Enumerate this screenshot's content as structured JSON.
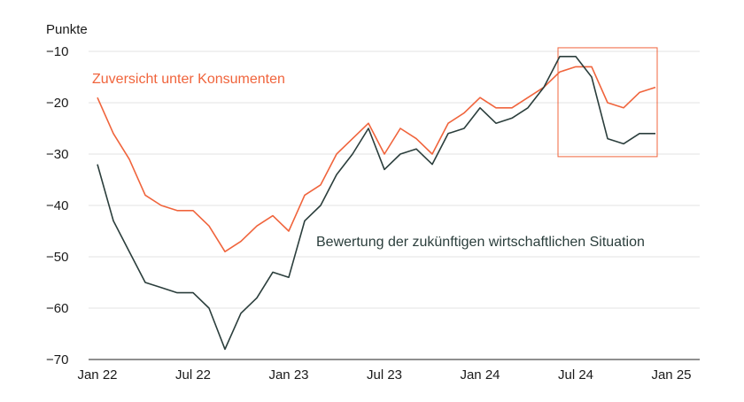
{
  "chart_data": {
    "type": "line",
    "ylabel": "Punkte",
    "ylim": [
      -70,
      -10
    ],
    "yticks": [
      -10,
      -20,
      -30,
      -40,
      -50,
      -60,
      -70
    ],
    "x_tick_labels": [
      "Jan 22",
      "Jul 22",
      "Jan 23",
      "Jul 23",
      "Jan 24",
      "Jul 24",
      "Jan 25"
    ],
    "x": [
      "2022-01",
      "2022-02",
      "2022-03",
      "2022-04",
      "2022-05",
      "2022-06",
      "2022-07",
      "2022-08",
      "2022-09",
      "2022-10",
      "2022-11",
      "2022-12",
      "2023-01",
      "2023-02",
      "2023-03",
      "2023-04",
      "2023-05",
      "2023-06",
      "2023-07",
      "2023-08",
      "2023-09",
      "2023-10",
      "2023-11",
      "2023-12",
      "2024-01",
      "2024-02",
      "2024-03",
      "2024-04",
      "2024-05",
      "2024-06",
      "2024-07",
      "2024-08",
      "2024-09",
      "2024-10",
      "2024-11",
      "2024-12",
      "2025-01"
    ],
    "grid": "horizontal",
    "series": [
      {
        "name": "Zuversicht unter Konsumenten",
        "color": "#f0643c",
        "values": [
          -19,
          -26,
          -31,
          -38,
          -40,
          -41,
          -41,
          -44,
          -49,
          -47,
          -44,
          -42,
          -45,
          -38,
          -36,
          -30,
          -27,
          -24,
          -30,
          -25,
          -27,
          -30,
          -24,
          -22,
          -19,
          -21,
          -21,
          -19,
          -17,
          -14,
          -13,
          -13,
          -20,
          -21,
          -18,
          -17,
          null
        ]
      },
      {
        "name": "Bewertung der zukünftigen wirtschaftlichen Situation",
        "color": "#2b3e3c",
        "values": [
          -32,
          -43,
          -49,
          -55,
          -56,
          -57,
          -57,
          -60,
          -68,
          -61,
          -58,
          -53,
          -54,
          -43,
          -40,
          -34,
          -30,
          -25,
          -33,
          -30,
          -29,
          -32,
          -26,
          -25,
          -21,
          -24,
          -23,
          -21,
          -17,
          -11,
          -11,
          -15,
          -27,
          -28,
          -26,
          -26,
          null
        ]
      }
    ],
    "annotation": {
      "shape": "rectangle",
      "color": "#f0643c",
      "x_range": [
        "2024-06",
        "2024-12"
      ],
      "y_range": [
        -30.5,
        -9.3
      ]
    }
  }
}
